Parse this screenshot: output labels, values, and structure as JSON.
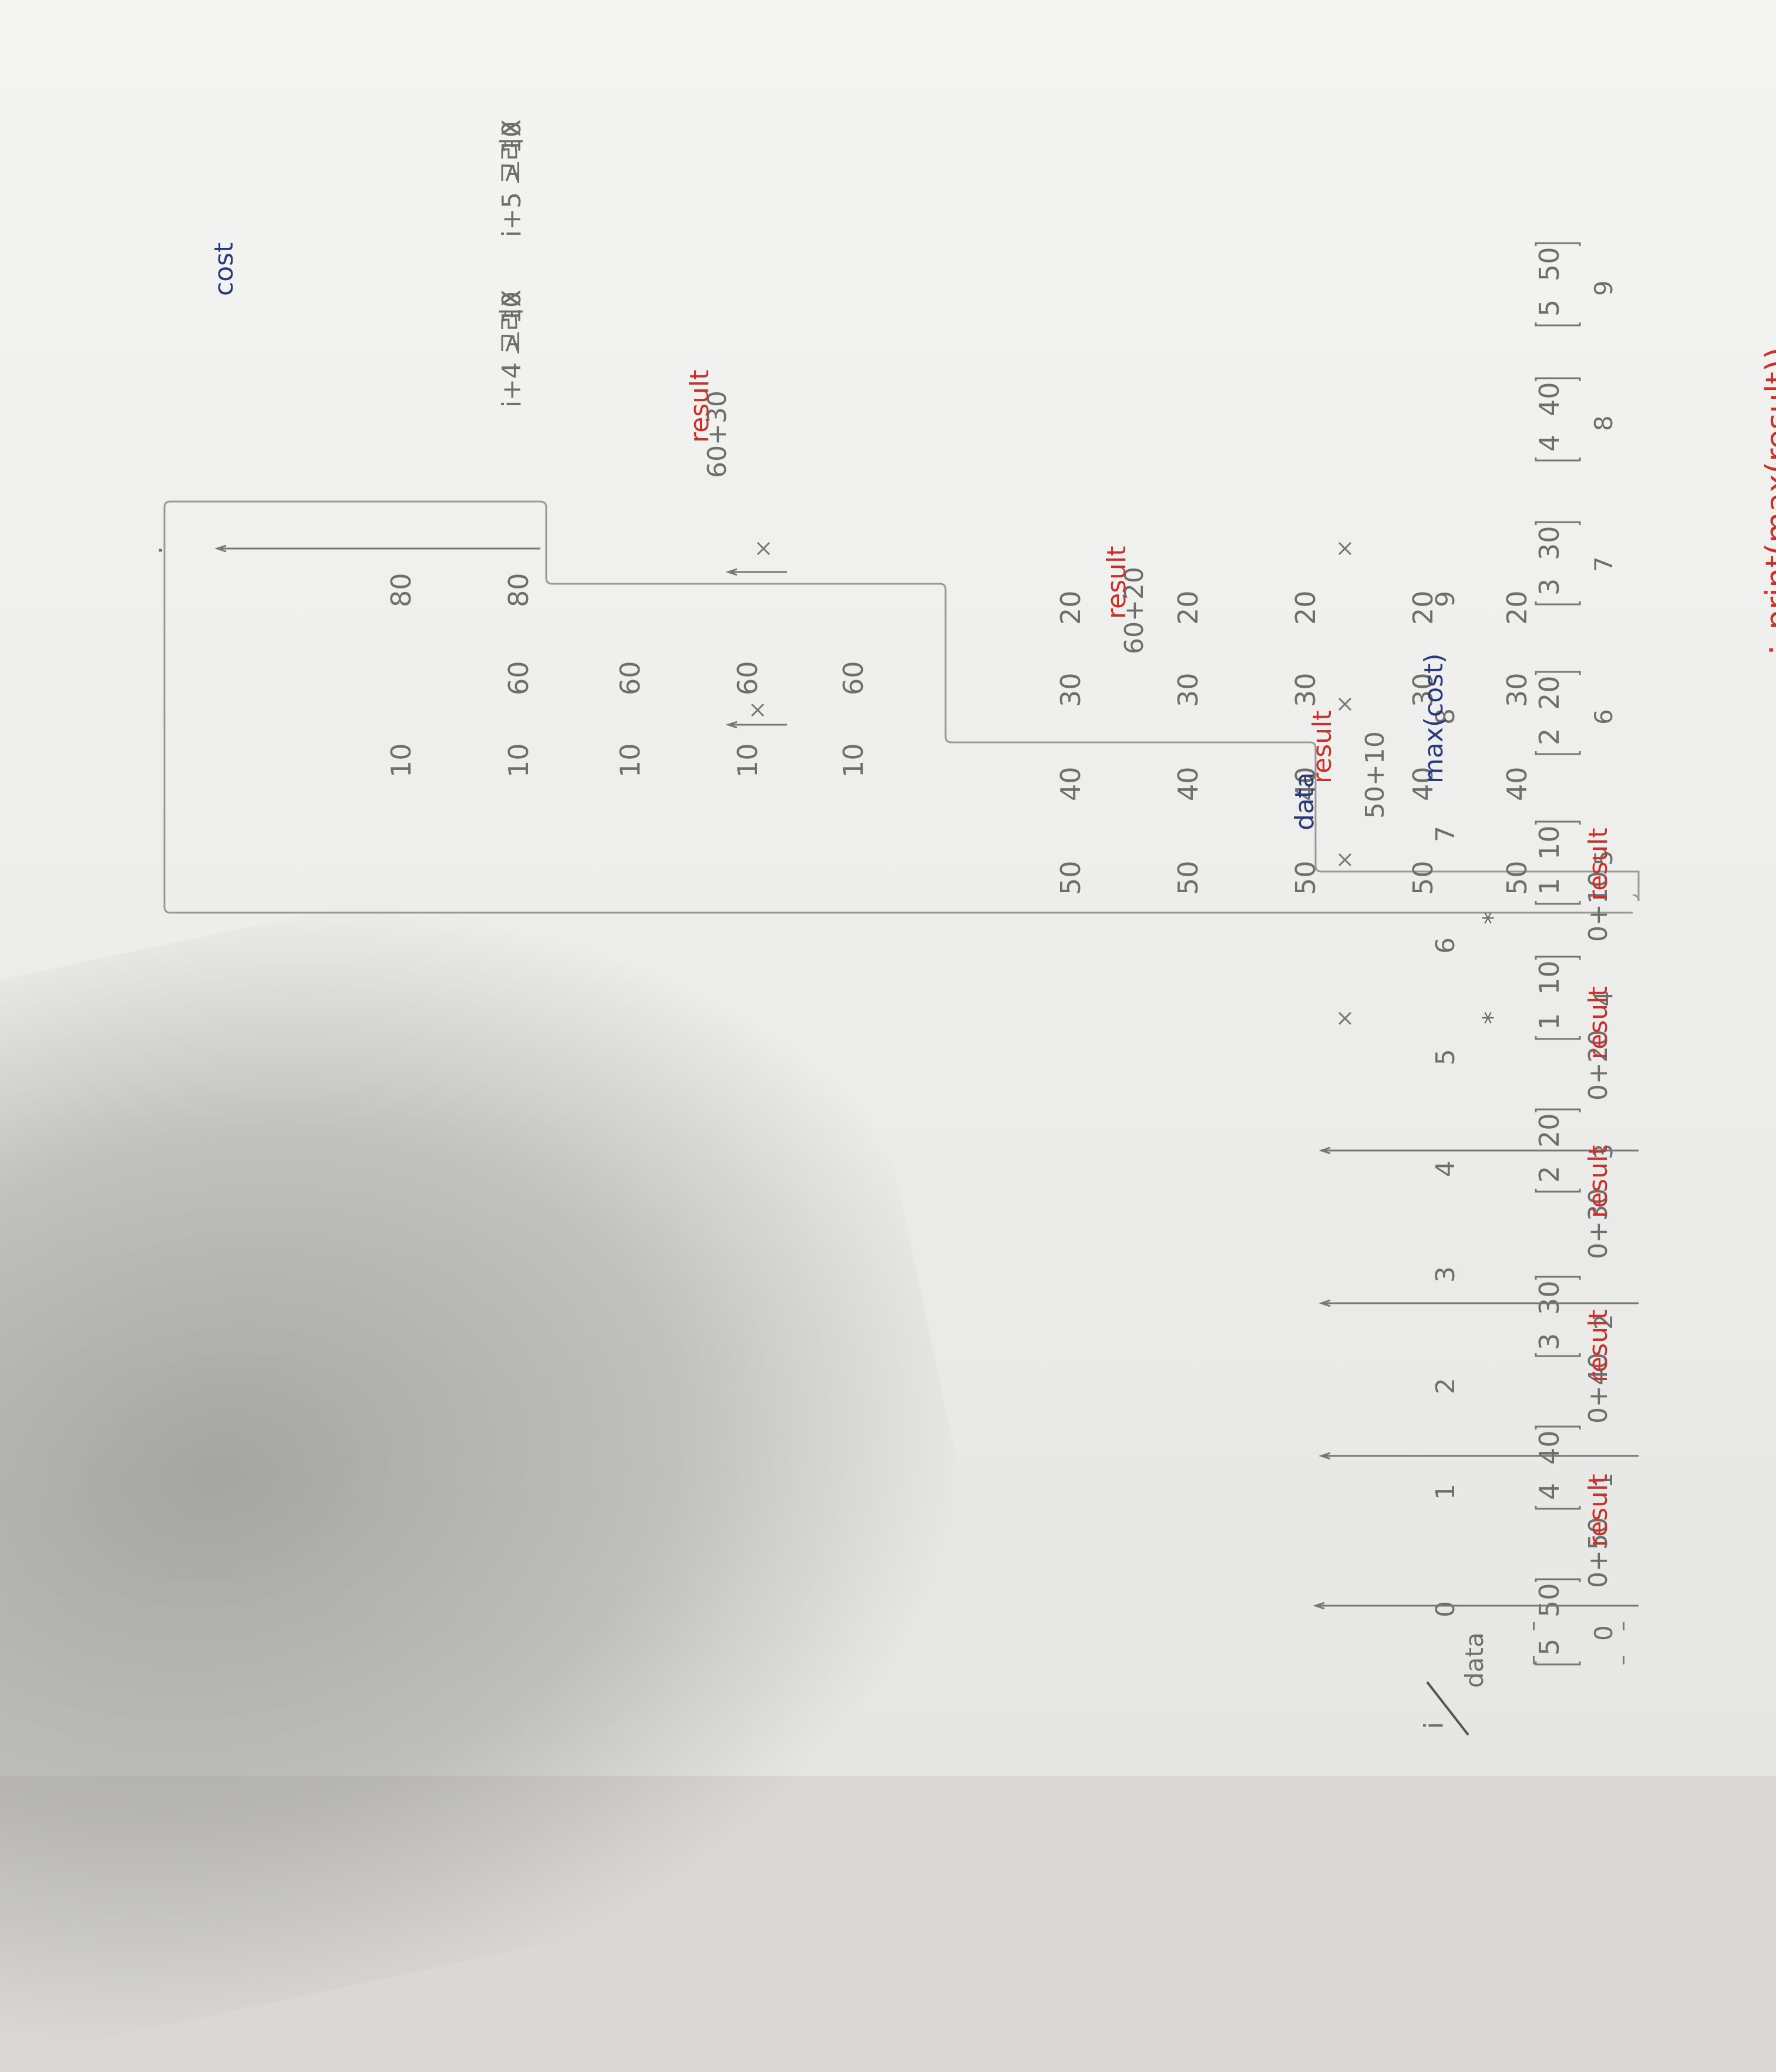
{
  "header": {
    "corner_top": "i",
    "corner_bottom": "data",
    "columns": [
      "0",
      "1",
      "2",
      "3",
      "4",
      "5",
      "6",
      "7",
      "8",
      "9"
    ]
  },
  "rows": [
    {
      "index": "0",
      "day": "5",
      "pay": "50"
    },
    {
      "index": "1",
      "day": "4",
      "pay": "40"
    },
    {
      "index": "2",
      "day": "3",
      "pay": "30"
    },
    {
      "index": "3",
      "day": "2",
      "pay": "20"
    },
    {
      "index": "4",
      "day": "1",
      "pay": "10"
    },
    {
      "index": "5",
      "day": "1",
      "pay": "10"
    },
    {
      "index": "6",
      "day": "2",
      "pay": "20"
    },
    {
      "index": "7",
      "day": "3",
      "pay": "30"
    },
    {
      "index": "8",
      "day": "4",
      "pay": "40"
    },
    {
      "index": "9",
      "day": "5",
      "pay": "50"
    }
  ],
  "cost_table": [
    [
      "50",
      "50",
      "50",
      "50",
      "50"
    ],
    [
      "40",
      "40",
      "40",
      "40",
      "40"
    ],
    [
      "30",
      "30",
      "30",
      "30",
      "30"
    ],
    [
      "20",
      "20",
      "20",
      "20",
      "20"
    ],
    [
      "10",
      "10",
      "10",
      "10",
      "10"
    ],
    [
      "60",
      "60",
      "60",
      "60"
    ],
    [
      "80",
      "80"
    ]
  ],
  "annotations": {
    "calc_0": "0+50",
    "calc_1": "0+40",
    "calc_2": "0+30",
    "calc_3": "0+20",
    "calc_4": "0+10",
    "calc_5": "50+10",
    "calc_6": "60+20",
    "calc_7": "60+30",
    "result": "result",
    "cost": "cost",
    "data": "data",
    "max_cost": "max(cost)",
    "note_8": "i+4 > 10",
    "note_9": "i+5 > 10",
    "note_x": "고려X",
    "star": "*",
    "final": "∴ print(max(result))",
    "dot": "."
  },
  "colors": {
    "pencil": "#6e6e6c",
    "red_pen": "#c8322c",
    "blue_pen": "#283a7a",
    "paper": "#f0f0ee"
  }
}
